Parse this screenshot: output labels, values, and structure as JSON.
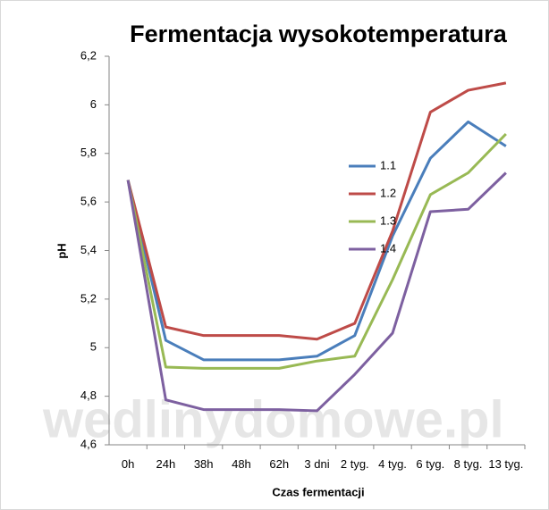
{
  "chart_data": {
    "type": "line",
    "title": "Fermentacja wysokotemperatura",
    "x_label": "Czas fermentacji",
    "y_label": "pH",
    "watermark": "wedlinydomowe.pl",
    "categories": [
      "0h",
      "24h",
      "38h",
      "48h",
      "62h",
      "3 dni",
      "2 tyg.",
      "4 tyg.",
      "6 tyg.",
      "8 tyg.",
      "13 tyg."
    ],
    "series": [
      {
        "name": "1.1",
        "color": "#4a7ebb",
        "values": [
          5.69,
          5.03,
          4.95,
          4.95,
          4.95,
          4.965,
          5.05,
          5.46,
          5.78,
          5.93,
          5.83
        ]
      },
      {
        "name": "1.2",
        "color": "#be4b48",
        "values": [
          5.69,
          5.085,
          5.05,
          5.05,
          5.05,
          5.035,
          5.1,
          5.48,
          5.97,
          6.06,
          6.09
        ]
      },
      {
        "name": "1.3",
        "color": "#98b954",
        "values": [
          5.69,
          4.92,
          4.915,
          4.915,
          4.915,
          4.945,
          4.965,
          5.28,
          5.63,
          5.72,
          5.88
        ]
      },
      {
        "name": "1.4",
        "color": "#7d60a0",
        "values": [
          5.69,
          4.785,
          4.745,
          4.745,
          4.745,
          4.74,
          4.89,
          5.06,
          5.56,
          5.57,
          5.72
        ]
      }
    ],
    "ylim": [
      4.6,
      6.2
    ],
    "yticks": [
      {
        "value": 4.6,
        "label": "4,6"
      },
      {
        "value": 4.8,
        "label": "4,8"
      },
      5,
      {
        "value": 5.2,
        "label": "5,2"
      },
      {
        "value": 5.4,
        "label": "5,4"
      },
      {
        "value": 5.6,
        "label": "5,6"
      },
      {
        "value": 5.8,
        "label": "5,8"
      },
      6,
      {
        "value": 6.2,
        "label": "6,2"
      }
    ],
    "legend": "right",
    "grid": false
  }
}
